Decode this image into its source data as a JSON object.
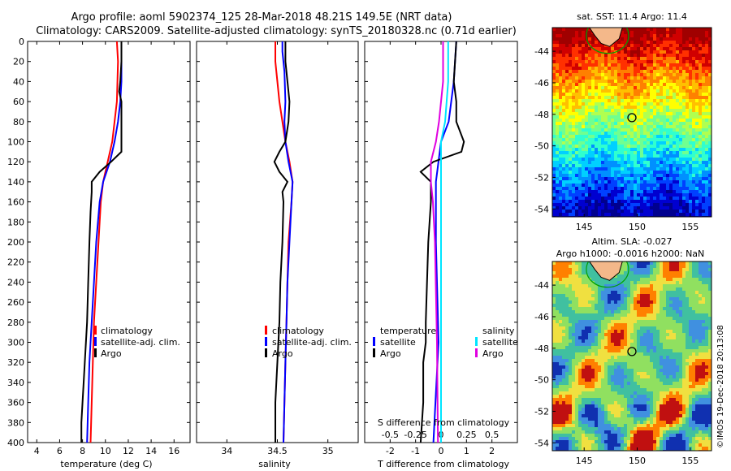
{
  "header": {
    "line1": "Argo profile: aoml 5902374_125 28-Mar-2018 48.21S 149.5E (NRT data)",
    "line2": "Climatology: CARS2009. Satellite-adjusted climatology: synTS_20180328.nc (0.71d earlier)"
  },
  "colors": {
    "climatology": "#ff0000",
    "satellite": "#0000ff",
    "argo": "#000000",
    "t_satellite": "#0000ff",
    "s_satellite": "#00e5ff",
    "s_argo": "#e000e0"
  },
  "chart_data": [
    {
      "type": "line",
      "title": "",
      "xlabel": "temperature (deg C)",
      "ylabel": "",
      "xlim": [
        3.2,
        17.4
      ],
      "ylim": [
        400,
        0
      ],
      "xticks": [
        "4",
        "6",
        "8",
        "10",
        "12",
        "14",
        "16"
      ],
      "yticks": [
        "0",
        "20",
        "40",
        "60",
        "80",
        "100",
        "120",
        "140",
        "160",
        "180",
        "200",
        "220",
        "240",
        "260",
        "280",
        "300",
        "320",
        "340",
        "360",
        "380",
        "400"
      ],
      "legend": [
        "climatology",
        "satellite-adj. clim.",
        "Argo"
      ],
      "series": [
        {
          "name": "climatology",
          "depth": [
            0,
            20,
            60,
            100,
            120,
            140,
            160,
            200,
            240,
            280,
            320,
            360,
            400
          ],
          "values": [
            11.0,
            11.1,
            11.0,
            10.6,
            10.2,
            9.8,
            9.6,
            9.4,
            9.2,
            9.0,
            8.9,
            8.8,
            8.7
          ]
        },
        {
          "name": "satellite-adj. clim.",
          "depth": [
            0,
            20,
            40,
            60,
            80,
            100,
            120,
            140,
            160,
            200,
            240,
            280,
            320,
            360,
            400
          ],
          "values": [
            11.4,
            11.4,
            11.4,
            11.3,
            11.1,
            10.8,
            10.4,
            9.8,
            9.5,
            9.2,
            9.0,
            8.8,
            8.6,
            8.5,
            8.4
          ]
        },
        {
          "name": "Argo",
          "depth": [
            0,
            20,
            40,
            50,
            60,
            80,
            100,
            110,
            120,
            130,
            140,
            150,
            170,
            200,
            240,
            280,
            300,
            320,
            340,
            360,
            380,
            400
          ],
          "values": [
            11.4,
            11.4,
            11.3,
            11.2,
            11.4,
            11.4,
            11.4,
            11.4,
            10.5,
            9.5,
            8.8,
            8.8,
            8.7,
            8.6,
            8.5,
            8.4,
            8.3,
            8.2,
            8.1,
            8.0,
            7.9,
            7.9
          ]
        }
      ]
    },
    {
      "type": "line",
      "xlabel": "salinity",
      "xlim": [
        33.7,
        35.3
      ],
      "ylim": [
        400,
        0
      ],
      "xticks": [
        "34",
        "34.5",
        "35"
      ],
      "legend": [
        "climatology",
        "satellite-adj. clim.",
        "Argo"
      ],
      "series": [
        {
          "name": "climatology",
          "depth": [
            0,
            20,
            40,
            60,
            80,
            100,
            120,
            140,
            160,
            200,
            240,
            280,
            320,
            360,
            400
          ],
          "values": [
            34.48,
            34.48,
            34.5,
            34.52,
            34.55,
            34.58,
            34.62,
            34.65,
            34.64,
            34.61,
            34.6,
            34.59,
            34.58,
            34.57,
            34.56
          ]
        },
        {
          "name": "satellite-adj. clim.",
          "depth": [
            0,
            10,
            30,
            60,
            80,
            100,
            120,
            140,
            160,
            200,
            240,
            280,
            320,
            360,
            400
          ],
          "values": [
            34.55,
            34.55,
            34.57,
            34.58,
            34.57,
            34.58,
            34.61,
            34.65,
            34.64,
            34.62,
            34.6,
            34.59,
            34.58,
            34.57,
            34.56
          ]
        },
        {
          "name": "Argo",
          "depth": [
            0,
            20,
            40,
            60,
            80,
            100,
            110,
            120,
            130,
            140,
            150,
            160,
            200,
            240,
            280,
            320,
            360,
            400
          ],
          "values": [
            34.58,
            34.58,
            34.6,
            34.62,
            34.61,
            34.58,
            34.52,
            34.47,
            34.52,
            34.6,
            34.55,
            34.56,
            34.55,
            34.53,
            34.52,
            34.5,
            34.48,
            34.48
          ]
        }
      ]
    },
    {
      "type": "line",
      "xlabel": "T difference from climatology",
      "xlabel_top": "S difference  from climatology",
      "xlim": [
        -3,
        3
      ],
      "xlim_S": [
        -0.75,
        0.75
      ],
      "ylim": [
        400,
        0
      ],
      "xticks": [
        "-2",
        "-1",
        "0",
        "1",
        "2"
      ],
      "xticks_S": [
        "-0.5",
        "-0.25",
        "0",
        "0.25",
        "0.5"
      ],
      "legend_T": {
        "head": "temperature",
        "items": [
          "satellite",
          "Argo"
        ]
      },
      "legend_S": {
        "head": "salinity",
        "items": [
          "satellite",
          "Argo"
        ]
      },
      "series": [
        {
          "name": "T satellite",
          "depth": [
            0,
            40,
            80,
            100,
            140,
            200,
            300,
            400
          ],
          "values": [
            0.6,
            0.5,
            0.3,
            0.0,
            -0.2,
            -0.2,
            -0.1,
            -0.3
          ]
        },
        {
          "name": "T Argo",
          "depth": [
            0,
            40,
            60,
            80,
            100,
            110,
            120,
            130,
            140,
            160,
            200,
            280,
            300,
            320,
            360,
            400
          ],
          "values": [
            0.6,
            0.5,
            0.6,
            0.6,
            0.9,
            0.8,
            -0.3,
            -0.8,
            -0.4,
            -0.4,
            -0.5,
            -0.6,
            -0.6,
            -0.7,
            -0.7,
            -0.8
          ]
        },
        {
          "name": "S satellite",
          "depth": [
            0,
            40,
            80,
            100,
            130,
            160,
            200,
            300,
            400
          ],
          "values": [
            0.07,
            0.07,
            0.04,
            0.0,
            0.0,
            0.0,
            0.0,
            0.0,
            0.0
          ]
        },
        {
          "name": "S Argo",
          "depth": [
            0,
            40,
            80,
            100,
            120,
            140,
            160,
            200,
            300,
            400
          ],
          "values": [
            0.02,
            0.02,
            -0.02,
            -0.05,
            -0.1,
            -0.1,
            -0.08,
            -0.06,
            -0.04,
            -0.03
          ]
        }
      ]
    },
    {
      "type": "heatmap",
      "title": "sat. SST: 11.4 Argo: 11.4",
      "xlim": [
        142,
        157
      ],
      "ylim": [
        -54.5,
        -42.5
      ],
      "xticks": [
        "145",
        "150",
        "155"
      ],
      "yticks": [
        "-44",
        "-46",
        "-48",
        "-50",
        "-52",
        "-54"
      ],
      "marker": {
        "lon": 149.5,
        "lat": -48.21
      }
    },
    {
      "type": "heatmap",
      "title": "Altim. SLA: -0.027",
      "subtitle": "Argo h1000: -0.0016 h2000: NaN",
      "xlim": [
        142,
        157
      ],
      "ylim": [
        -54.5,
        -42.5
      ],
      "xticks": [
        "145",
        "150",
        "155"
      ],
      "yticks": [
        "-44",
        "-46",
        "-48",
        "-50",
        "-52",
        "-54"
      ],
      "marker": {
        "lon": 149.5,
        "lat": -48.21
      }
    }
  ],
  "credit": "©IMOS 19-Dec-2018 20:13:08"
}
